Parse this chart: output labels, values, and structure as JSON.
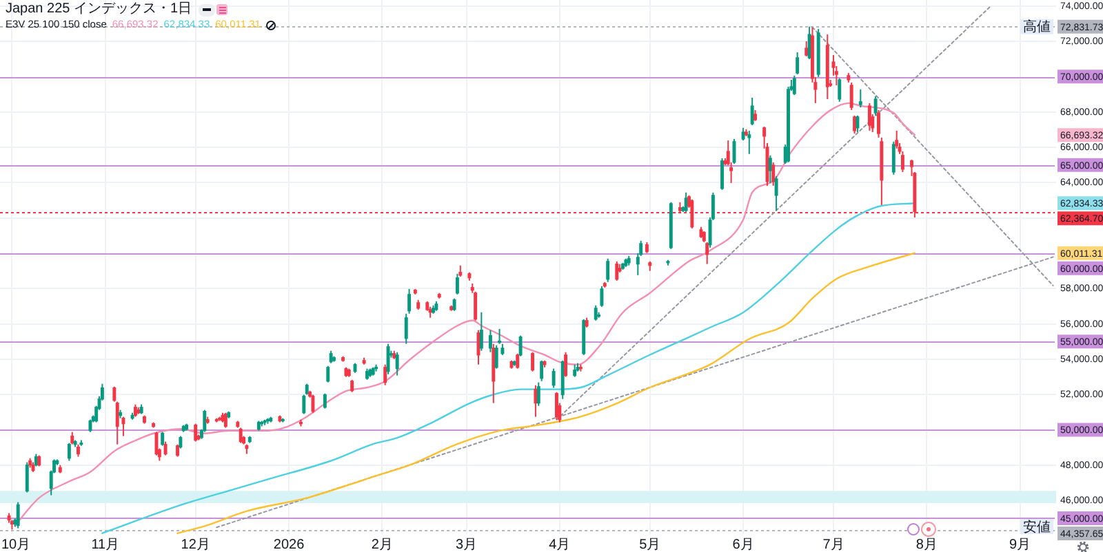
{
  "chart_data": {
    "type": "candlestick",
    "title": "Japan 225 インデックス・1日",
    "legend_title": "E3V 25 100 150 close",
    "grid": true,
    "x": [
      "2025-09-30",
      "2025-10-01",
      "2025-10-02",
      "2025-10-03",
      "2025-10-06",
      "2025-10-07",
      "2025-10-08",
      "2025-10-09",
      "2025-10-10",
      "2025-10-14",
      "2025-10-15",
      "2025-10-16",
      "2025-10-17",
      "2025-10-20",
      "2025-10-21",
      "2025-10-22",
      "2025-10-23",
      "2025-10-24",
      "2025-10-27",
      "2025-10-28",
      "2025-10-29",
      "2025-10-30",
      "2025-10-31",
      "2025-11-04",
      "2025-11-05",
      "2025-11-06",
      "2025-11-07",
      "2025-11-10",
      "2025-11-11",
      "2025-11-12",
      "2025-11-13",
      "2025-11-14",
      "2025-11-17",
      "2025-11-18",
      "2025-11-19",
      "2025-11-20",
      "2025-11-21",
      "2025-11-25",
      "2025-11-26",
      "2025-11-27",
      "2025-11-28",
      "2025-12-01",
      "2025-12-02",
      "2025-12-03",
      "2025-12-04",
      "2025-12-05",
      "2025-12-08",
      "2025-12-09",
      "2025-12-10",
      "2025-12-11",
      "2025-12-12",
      "2025-12-15",
      "2025-12-16",
      "2025-12-17",
      "2025-12-18",
      "2025-12-19",
      "2025-12-22",
      "2025-12-23",
      "2025-12-24",
      "2025-12-25",
      "2025-12-26",
      "2025-12-29",
      "2025-12-30",
      "2026-01-05",
      "2026-01-06",
      "2026-01-07",
      "2026-01-08",
      "2026-01-09",
      "2026-01-13",
      "2026-01-14",
      "2026-01-15",
      "2026-01-16",
      "2026-01-19",
      "2026-01-20",
      "2026-01-21",
      "2026-01-22",
      "2026-01-23",
      "2026-01-26",
      "2026-01-27",
      "2026-01-28",
      "2026-01-29",
      "2026-01-30",
      "2026-02-02",
      "2026-02-03",
      "2026-02-04",
      "2026-02-05",
      "2026-02-06",
      "2026-02-09",
      "2026-02-10",
      "2026-02-12",
      "2026-02-13",
      "2026-02-16",
      "2026-02-17",
      "2026-02-18",
      "2026-02-19",
      "2026-02-20",
      "2026-02-24",
      "2026-02-25",
      "2026-02-26",
      "2026-02-27",
      "2026-03-02",
      "2026-03-03",
      "2026-03-04",
      "2026-03-05",
      "2026-03-06",
      "2026-03-09",
      "2026-03-10",
      "2026-03-11",
      "2026-03-12",
      "2026-03-13",
      "2026-03-16",
      "2026-03-17",
      "2026-03-18",
      "2026-03-19",
      "2026-03-23",
      "2026-03-24",
      "2026-03-25",
      "2026-03-26",
      "2026-03-27",
      "2026-03-30",
      "2026-03-31",
      "2026-04-01",
      "2026-04-02",
      "2026-04-03",
      "2026-04-06",
      "2026-04-07",
      "2026-04-08",
      "2026-04-09",
      "2026-04-10",
      "2026-04-13",
      "2026-04-14",
      "2026-04-15",
      "2026-04-16",
      "2026-04-17",
      "2026-04-20",
      "2026-04-21",
      "2026-04-22",
      "2026-04-23",
      "2026-04-24",
      "2026-04-27",
      "2026-04-28",
      "2026-04-30",
      "2026-05-01",
      "2026-05-07",
      "2026-05-08",
      "2026-05-11",
      "2026-05-12",
      "2026-05-13",
      "2026-05-14",
      "2026-05-15",
      "2026-05-18",
      "2026-05-19",
      "2026-05-20",
      "2026-05-21",
      "2026-05-22",
      "2026-05-25",
      "2026-05-26",
      "2026-05-27",
      "2026-05-28",
      "2026-05-29",
      "2026-06-01",
      "2026-06-02",
      "2026-06-03",
      "2026-06-04",
      "2026-06-05",
      "2026-06-08",
      "2026-06-09",
      "2026-06-10",
      "2026-06-11",
      "2026-06-12",
      "2026-06-15",
      "2026-06-16",
      "2026-06-17",
      "2026-06-18",
      "2026-06-19",
      "2026-06-22",
      "2026-06-23",
      "2026-06-24",
      "2026-06-25",
      "2026-06-26",
      "2026-06-29",
      "2026-06-30",
      "2026-07-01",
      "2026-07-02",
      "2026-07-03",
      "2026-07-06",
      "2026-07-07",
      "2026-07-08",
      "2026-07-09",
      "2026-07-10",
      "2026-07-13",
      "2026-07-14",
      "2026-07-15",
      "2026-07-16",
      "2026-07-17",
      "2026-07-21",
      "2026-07-22",
      "2026-07-23",
      "2026-07-24",
      "2026-07-27",
      "2026-07-28"
    ],
    "ohlc": [
      [
        45130,
        45290,
        44740,
        44900
      ],
      [
        44820,
        44900,
        44357.65,
        44670
      ],
      [
        44670,
        44980,
        44510,
        44900
      ],
      [
        44590,
        45910,
        44430,
        45760
      ],
      [
        46540,
        48170,
        46460,
        48010
      ],
      [
        48250,
        48400,
        47860,
        48010
      ],
      [
        48010,
        48170,
        47620,
        47700
      ],
      [
        48010,
        48640,
        47940,
        48480
      ],
      [
        48480,
        48560,
        47940,
        48010
      ],
      [
        46690,
        47700,
        46300,
        47620
      ],
      [
        47620,
        48330,
        47550,
        48250
      ],
      [
        48090,
        48330,
        48010,
        48250
      ],
      [
        47860,
        48010,
        47550,
        47620
      ],
      [
        48400,
        49260,
        48250,
        49180
      ],
      [
        49650,
        49880,
        49180,
        49260
      ],
      [
        49180,
        49420,
        49030,
        49340
      ],
      [
        49030,
        49180,
        48480,
        48640
      ],
      [
        49180,
        49420,
        49100,
        49260
      ],
      [
        49960,
        50580,
        49880,
        50510
      ],
      [
        50510,
        50820,
        50430,
        50740
      ],
      [
        50510,
        51360,
        50430,
        51280
      ],
      [
        51210,
        51910,
        51130,
        51750
      ],
      [
        51750,
        52610,
        51670,
        52380
      ],
      [
        52380,
        52450,
        51600,
        51670
      ],
      [
        51520,
        51600,
        49180,
        50200
      ],
      [
        50820,
        51130,
        50660,
        50970
      ],
      [
        50660,
        50740,
        49650,
        50350
      ],
      [
        50660,
        50970,
        50580,
        50820
      ],
      [
        51280,
        51440,
        50740,
        50820
      ],
      [
        51130,
        51280,
        50900,
        50970
      ],
      [
        50970,
        51440,
        50900,
        51280
      ],
      [
        50740,
        50820,
        50350,
        50430
      ],
      [
        50350,
        50430,
        50120,
        50200
      ],
      [
        49810,
        49880,
        48560,
        48640
      ],
      [
        48870,
        48950,
        48250,
        48480
      ],
      [
        49180,
        49880,
        49100,
        49810
      ],
      [
        49180,
        49340,
        48560,
        48640
      ],
      [
        49100,
        49180,
        48480,
        48560
      ],
      [
        49030,
        49650,
        48950,
        49570
      ],
      [
        49960,
        50270,
        49880,
        50200
      ],
      [
        50040,
        50350,
        49960,
        50270
      ],
      [
        50270,
        50350,
        49340,
        49420
      ],
      [
        49650,
        49730,
        49420,
        49490
      ],
      [
        49570,
        50040,
        49490,
        49960
      ],
      [
        49960,
        51130,
        49880,
        51050
      ],
      [
        50580,
        50740,
        50350,
        50430
      ],
      [
        50580,
        50660,
        50430,
        50510
      ],
      [
        50660,
        50740,
        50510,
        50580
      ],
      [
        50820,
        50970,
        50430,
        50510
      ],
      [
        50900,
        50970,
        50120,
        50200
      ],
      [
        50740,
        51050,
        50660,
        50970
      ],
      [
        50430,
        50510,
        50120,
        50200
      ],
      [
        50040,
        50120,
        49260,
        49340
      ],
      [
        49570,
        49650,
        49180,
        49260
      ],
      [
        49100,
        49180,
        48640,
        48950
      ],
      [
        49340,
        49650,
        49260,
        49570
      ],
      [
        50040,
        50510,
        49960,
        50430
      ],
      [
        50350,
        50510,
        50200,
        50430
      ],
      [
        50430,
        50580,
        50270,
        50510
      ],
      [
        50510,
        50660,
        50350,
        50580
      ],
      [
        50510,
        50740,
        50430,
        50660
      ],
      [
        50740,
        50820,
        50430,
        50510
      ],
      [
        50510,
        50660,
        50430,
        50580
      ],
      [
        50430,
        50580,
        50200,
        50350
      ],
      [
        50970,
        51990,
        50900,
        51910
      ],
      [
        52060,
        52610,
        51990,
        52530
      ],
      [
        52140,
        52220,
        51830,
        51910
      ],
      [
        51910,
        51990,
        50970,
        51050
      ],
      [
        51280,
        52060,
        51210,
        51990
      ],
      [
        52760,
        53620,
        52690,
        53540
      ],
      [
        53860,
        54480,
        53780,
        54320
      ],
      [
        53930,
        54170,
        53860,
        54090
      ],
      [
        54090,
        54170,
        53860,
        53930
      ],
      [
        53470,
        53540,
        53000,
        53080
      ],
      [
        53390,
        53470,
        53000,
        53080
      ],
      [
        52760,
        52840,
        52140,
        52220
      ],
      [
        53310,
        53780,
        53230,
        53700
      ],
      [
        53930,
        54090,
        53700,
        53780
      ],
      [
        52920,
        53470,
        52840,
        53310
      ],
      [
        53080,
        53470,
        53000,
        53390
      ],
      [
        53150,
        53540,
        53080,
        53470
      ],
      [
        53470,
        53700,
        53310,
        53540
      ],
      [
        53540,
        53700,
        52530,
        52690
      ],
      [
        53310,
        54870,
        53150,
        54710
      ],
      [
        54240,
        54480,
        54090,
        54320
      ],
      [
        54320,
        54480,
        54010,
        54090
      ],
      [
        53470,
        54400,
        53080,
        54240
      ],
      [
        55180,
        56580,
        54870,
        56350
      ],
      [
        56740,
        57980,
        56580,
        57670
      ],
      [
        57910,
        57980,
        57670,
        57750
      ],
      [
        57200,
        57360,
        56810,
        56890
      ],
      [
        57200,
        57280,
        56740,
        56810
      ],
      [
        56810,
        56970,
        56350,
        56660
      ],
      [
        56660,
        57050,
        56580,
        56890
      ],
      [
        56810,
        57280,
        56740,
        57130
      ],
      [
        57670,
        57750,
        57440,
        57520
      ],
      [
        56970,
        57050,
        56740,
        56810
      ],
      [
        56810,
        57440,
        56740,
        57360
      ],
      [
        57750,
        58840,
        57670,
        58610
      ],
      [
        58920,
        59310,
        58680,
        58760
      ],
      [
        58840,
        58920,
        58450,
        58610
      ],
      [
        58060,
        58290,
        57750,
        57910
      ],
      [
        57750,
        57830,
        56190,
        56270
      ],
      [
        55490,
        55650,
        53700,
        54240
      ],
      [
        54630,
        56660,
        54480,
        55650
      ],
      [
        54630,
        55650,
        54400,
        55340
      ],
      [
        54630,
        54870,
        51520,
        52760
      ],
      [
        53540,
        54790,
        53470,
        54630
      ],
      [
        54950,
        55720,
        54870,
        55020
      ],
      [
        54320,
        54870,
        54240,
        54630
      ],
      [
        53860,
        53930,
        53470,
        53540
      ],
      [
        53700,
        53930,
        53620,
        53860
      ],
      [
        54240,
        54320,
        53470,
        53540
      ],
      [
        54240,
        55340,
        54170,
        55260
      ],
      [
        54320,
        54400,
        53310,
        53390
      ],
      [
        52300,
        52530,
        50740,
        51520
      ],
      [
        51520,
        52690,
        51360,
        52450
      ],
      [
        52920,
        53930,
        52760,
        53860
      ],
      [
        53860,
        53930,
        53540,
        53700
      ],
      [
        52530,
        53470,
        52380,
        53310
      ],
      [
        52060,
        52140,
        50580,
        50740
      ],
      [
        51360,
        51520,
        50430,
        50580
      ],
      [
        51990,
        53930,
        51750,
        53860
      ],
      [
        54240,
        54400,
        53000,
        53080
      ],
      [
        53080,
        53700,
        53000,
        53390
      ],
      [
        53390,
        53780,
        53310,
        53540
      ],
      [
        53540,
        53700,
        53310,
        53470
      ],
      [
        54320,
        56270,
        54240,
        56190
      ],
      [
        56190,
        56350,
        55800,
        55880
      ],
      [
        56270,
        57050,
        56190,
        56890
      ],
      [
        56430,
        56660,
        56350,
        56500
      ],
      [
        57050,
        58140,
        56970,
        57980
      ],
      [
        58290,
        58370,
        58060,
        58140
      ],
      [
        58530,
        59700,
        58370,
        59540
      ],
      [
        59390,
        59540,
        58450,
        58530
      ],
      [
        59150,
        59390,
        58920,
        59000
      ],
      [
        59150,
        59460,
        59070,
        59390
      ],
      [
        59310,
        59700,
        59230,
        59620
      ],
      [
        59460,
        59850,
        59310,
        59700
      ],
      [
        59390,
        60010,
        58760,
        59770
      ],
      [
        59930,
        60710,
        59850,
        60550
      ],
      [
        60480,
        60630,
        60010,
        60090
      ],
      [
        59460,
        59540,
        59000,
        59310
      ],
      [
        59460,
        59620,
        59310,
        59540
      ],
      [
        60320,
        62890,
        60240,
        62810
      ],
      [
        62580,
        62890,
        62340,
        62420
      ],
      [
        62420,
        62660,
        62340,
        62580
      ],
      [
        62420,
        63440,
        62340,
        63120
      ],
      [
        63200,
        63280,
        62580,
        62660
      ],
      [
        62970,
        63050,
        61410,
        61490
      ],
      [
        61330,
        61490,
        60870,
        60940
      ],
      [
        61180,
        61250,
        60630,
        60710
      ],
      [
        60550,
        60630,
        59390,
        59930
      ],
      [
        60480,
        62030,
        60320,
        61880
      ],
      [
        61960,
        63440,
        61880,
        63280
      ],
      [
        63670,
        65380,
        63590,
        65230
      ],
      [
        65230,
        65380,
        64990,
        65070
      ],
      [
        65770,
        66390,
        64990,
        65070
      ],
      [
        64840,
        65150,
        63980,
        64680
      ],
      [
        65150,
        66470,
        65070,
        66320
      ],
      [
        66470,
        67100,
        66390,
        66860
      ],
      [
        66860,
        67020,
        66630,
        66710
      ],
      [
        66550,
        66940,
        65620,
        66710
      ],
      [
        67330,
        68810,
        67250,
        68340
      ],
      [
        67870,
        68110,
        67490,
        67560
      ],
      [
        67100,
        67170,
        65930,
        66630
      ],
      [
        66010,
        66240,
        63820,
        64060
      ],
      [
        64680,
        65540,
        63980,
        65380
      ],
      [
        64990,
        65150,
        63820,
        64060
      ],
      [
        63280,
        64370,
        62420,
        64210
      ],
      [
        65150,
        66160,
        65070,
        66010
      ],
      [
        65230,
        69430,
        65150,
        69280
      ],
      [
        69280,
        69820,
        69200,
        69430
      ],
      [
        69040,
        70060,
        68960,
        69900
      ],
      [
        70210,
        71380,
        70130,
        71070
      ],
      [
        71610,
        72000,
        71150,
        71220
      ],
      [
        71070,
        72831.73,
        70990,
        72390
      ],
      [
        72310,
        72780,
        69670,
        69900
      ],
      [
        69670,
        69980,
        68500,
        69280
      ],
      [
        70130,
        72700,
        69980,
        72470
      ],
      [
        71770,
        72390,
        68730,
        69430
      ],
      [
        69590,
        69820,
        69430,
        69510
      ],
      [
        70830,
        71220,
        70060,
        70520
      ],
      [
        70290,
        70600,
        69510,
        70130
      ],
      [
        68730,
        69900,
        68580,
        69820
      ],
      [
        70060,
        70210,
        69670,
        69820
      ],
      [
        69510,
        69670,
        68110,
        68260
      ],
      [
        67720,
        67800,
        66780,
        66940
      ],
      [
        67100,
        67800,
        66860,
        67720
      ],
      [
        68420,
        69280,
        68260,
        68580
      ],
      [
        68340,
        68500,
        66940,
        67250
      ],
      [
        67720,
        67870,
        66860,
        67100
      ],
      [
        67950,
        68890,
        67800,
        68730
      ],
      [
        67950,
        68110,
        66550,
        66780
      ],
      [
        66320,
        66550,
        62730,
        64140
      ],
      [
        64600,
        66320,
        64450,
        66160
      ],
      [
        66390,
        66940,
        65930,
        66080
      ],
      [
        66010,
        66240,
        65620,
        65770
      ],
      [
        65540,
        65770,
        64600,
        64760
      ],
      [
        65230,
        65300,
        64370,
        64910
      ],
      [
        64530,
        64600,
        62030,
        62364.7
      ]
    ],
    "colors": [
      "#f23645",
      "#f23645",
      "#089981",
      "#089981",
      "#089981",
      "#f23645",
      "#f23645",
      "#089981",
      "#f23645",
      "#089981",
      "#089981",
      "#089981",
      "#f23645",
      "#089981",
      "#f23645",
      "#089981",
      "#f23645",
      "#089981",
      "#089981",
      "#089981",
      "#089981",
      "#089981",
      "#089981",
      "#f23645",
      "#f23645",
      "#089981",
      "#f23645",
      "#089981",
      "#f23645",
      "#f23645",
      "#089981",
      "#f23645",
      "#f23645",
      "#f23645",
      "#f23645",
      "#089981",
      "#f23645",
      "#f23645",
      "#089981",
      "#089981",
      "#089981",
      "#f23645",
      "#f23645",
      "#089981",
      "#089981",
      "#f23645",
      "#f23645",
      "#f23645",
      "#f23645",
      "#f23645",
      "#089981",
      "#f23645",
      "#f23645",
      "#f23645",
      "#f23645",
      "#089981",
      "#089981",
      "#089981",
      "#089981",
      "#089981",
      "#089981",
      "#f23645",
      "#089981",
      "#f23645",
      "#089981",
      "#089981",
      "#f23645",
      "#f23645",
      "#089981",
      "#089981",
      "#089981",
      "#089981",
      "#f23645",
      "#f23645",
      "#f23645",
      "#f23645",
      "#089981",
      "#f23645",
      "#089981",
      "#089981",
      "#089981",
      "#089981",
      "#f23645",
      "#089981",
      "#089981",
      "#f23645",
      "#089981",
      "#089981",
      "#089981",
      "#f23645",
      "#f23645",
      "#f23645",
      "#f23645",
      "#089981",
      "#089981",
      "#f23645",
      "#f23645",
      "#089981",
      "#089981",
      "#f23645",
      "#f23645",
      "#f23645",
      "#f23645",
      "#f23645",
      "#089981",
      "#089981",
      "#f23645",
      "#089981",
      "#089981",
      "#089981",
      "#f23645",
      "#089981",
      "#f23645",
      "#089981",
      "#f23645",
      "#f23645",
      "#089981",
      "#089981",
      "#f23645",
      "#089981",
      "#f23645",
      "#f23645",
      "#089981",
      "#f23645",
      "#089981",
      "#089981",
      "#f23645",
      "#089981",
      "#f23645",
      "#089981",
      "#089981",
      "#089981",
      "#f23645",
      "#089981",
      "#f23645",
      "#f23645",
      "#089981",
      "#089981",
      "#089981",
      "#089981",
      "#089981",
      "#f23645",
      "#f23645",
      "#089981",
      "#089981",
      "#f23645",
      "#089981",
      "#089981",
      "#f23645",
      "#f23645",
      "#f23645",
      "#f23645",
      "#f23645",
      "#089981",
      "#089981",
      "#089981",
      "#f23645",
      "#f23645",
      "#f23645",
      "#089981",
      "#089981",
      "#f23645",
      "#089981",
      "#089981",
      "#f23645",
      "#f23645",
      "#f23645",
      "#089981",
      "#f23645",
      "#089981",
      "#089981",
      "#089981",
      "#089981",
      "#089981",
      "#089981",
      "#f23645",
      "#089981",
      "#f23645",
      "#f23645",
      "#089981",
      "#f23645",
      "#f23645",
      "#f23645",
      "#f23645",
      "#089981",
      "#f23645",
      "#f23645",
      "#f23645",
      "#089981",
      "#089981",
      "#f23645",
      "#f23645",
      "#089981",
      "#f23645",
      "#f23645",
      "#089981",
      "#f23645",
      "#f23645",
      "#f23645",
      "#f23645",
      "#f23645"
    ],
    "series": [
      {
        "type": "line",
        "color": "#f48fb1",
        "x": [
          "2025-10-02",
          "2025-10-10",
          "2025-10-20",
          "2025-10-27",
          "2025-11-04",
          "2025-11-11",
          "2025-11-17",
          "2025-11-26",
          "2025-12-04",
          "2025-12-12",
          "2025-12-23",
          "2025-12-30",
          "2026-01-06",
          "2026-01-14",
          "2026-01-20",
          "2026-01-27",
          "2026-02-02",
          "2026-02-10",
          "2026-02-18",
          "2026-02-26",
          "2026-03-03",
          "2026-03-06",
          "2026-03-12",
          "2026-03-19",
          "2026-03-27",
          "2026-04-01",
          "2026-04-07",
          "2026-04-14",
          "2026-04-22",
          "2026-05-01",
          "2026-05-14",
          "2026-05-21",
          "2026-06-01",
          "2026-06-04",
          "2026-06-11",
          "2026-06-17",
          "2026-06-24",
          "2026-06-30",
          "2026-07-06",
          "2026-07-10",
          "2026-07-21",
          "2026-07-24",
          "2026-07-28"
        ],
        "values": [
          44600,
          46150,
          47080,
          47620,
          48800,
          49400,
          49800,
          50050,
          49800,
          49950,
          49950,
          50100,
          50650,
          51600,
          52200,
          52400,
          52750,
          53950,
          55000,
          55900,
          56200,
          55900,
          55400,
          54750,
          54250,
          53850,
          53700,
          54700,
          56650,
          57750,
          59550,
          60150,
          61900,
          63450,
          64100,
          65750,
          67200,
          68100,
          68500,
          68350,
          67950,
          67350,
          66693.32
        ]
      },
      {
        "type": "line",
        "color": "#4dd0e1",
        "x": [
          "2025-10-31",
          "2025-11-12",
          "2025-11-27",
          "2025-12-12",
          "2025-12-26",
          "2026-01-15",
          "2026-01-29",
          "2026-02-06",
          "2026-02-18",
          "2026-03-02",
          "2026-03-10",
          "2026-03-19",
          "2026-03-31",
          "2026-04-08",
          "2026-04-17",
          "2026-05-01",
          "2026-05-14",
          "2026-05-21",
          "2026-06-01",
          "2026-06-12",
          "2026-06-24",
          "2026-07-02",
          "2026-07-08",
          "2026-07-16",
          "2026-07-28"
        ],
        "values": [
          44150,
          44900,
          45800,
          46550,
          47250,
          48250,
          49200,
          49550,
          50450,
          51500,
          52000,
          52300,
          52300,
          52400,
          53100,
          54250,
          55250,
          55800,
          56650,
          58200,
          60150,
          61350,
          62050,
          62650,
          62834.33
        ]
      },
      {
        "type": "line",
        "color": "#fbc02d",
        "x": [
          "2025-11-25",
          "2025-12-04",
          "2025-12-18",
          "2026-01-07",
          "2026-01-22",
          "2026-01-29",
          "2026-02-10",
          "2026-02-26",
          "2026-03-12",
          "2026-03-24",
          "2026-03-31",
          "2026-04-08",
          "2026-04-20",
          "2026-05-01",
          "2026-05-14",
          "2026-05-21",
          "2026-06-03",
          "2026-06-16",
          "2026-06-24",
          "2026-07-02",
          "2026-07-13",
          "2026-07-28"
        ],
        "values": [
          44150,
          44550,
          45400,
          46150,
          46950,
          47350,
          48000,
          49200,
          49950,
          50250,
          50450,
          50750,
          51500,
          52400,
          53200,
          53700,
          55150,
          56050,
          57450,
          58550,
          59250,
          60011.31
        ]
      },
      {
        "type": "line",
        "color": "#9598a1",
        "line_style": "dotted",
        "x": [
          "2026-03-31",
          "2026-08-22"
        ],
        "values": [
          50580,
          73950
        ]
      },
      {
        "type": "line",
        "color": "#9598a1",
        "line_style": "dotted",
        "x": [
          "2025-12-08",
          "2026-09-12"
        ],
        "values": [
          44480,
          59790
        ]
      },
      {
        "type": "line",
        "color": "#9598a1",
        "line_style": "dotted",
        "x": [
          "2026-06-24",
          "2026-09-12"
        ],
        "values": [
          72800,
          58170
        ]
      }
    ],
    "xlim": [
      "2025-09-27",
      "2026-09-13"
    ],
    "xticks": [
      {
        "value": "2025-10-01",
        "label": "10月"
      },
      {
        "value": "2025-11-01",
        "label": "11月"
      },
      {
        "value": "2025-12-01",
        "label": "12月"
      },
      {
        "value": "2026-01-01",
        "label": "2026"
      },
      {
        "value": "2026-02-01",
        "label": "2月"
      },
      {
        "value": "2026-03-01",
        "label": "3月"
      },
      {
        "value": "2026-04-01",
        "label": "4月"
      },
      {
        "value": "2026-05-01",
        "label": "5月"
      },
      {
        "value": "2026-06-01",
        "label": "6月"
      },
      {
        "value": "2026-07-01",
        "label": "7月"
      },
      {
        "value": "2026-08-01",
        "label": "8月"
      },
      {
        "value": "2026-09-01",
        "label": "9月"
      }
    ],
    "ylim": [
      44100,
      74340
    ],
    "yticks": [
      {
        "value": 46000,
        "label": "46,000.00"
      },
      {
        "value": 48000,
        "label": "48,000.00"
      },
      {
        "value": 52000,
        "label": "52,000.00"
      },
      {
        "value": 54000,
        "label": "54,000.00"
      },
      {
        "value": 56000,
        "label": "56,000.00"
      },
      {
        "value": 58000,
        "label": "58,000.00"
      },
      {
        "value": 60011.31,
        "label": "60,011.31"
      },
      {
        "value": 62000,
        "label": null
      },
      {
        "value": 62834.33,
        "label": "62,834.33"
      },
      {
        "value": 64000,
        "label": "64,000.00"
      },
      {
        "value": 66000,
        "label": "66,000.00"
      },
      {
        "value": 66693.32,
        "label": "66,693.32"
      },
      {
        "value": 68000,
        "label": "68,000.00"
      },
      {
        "value": 72000,
        "label": "72,000.00"
      },
      {
        "value": 74000,
        "label": "74,000.00"
      }
    ],
    "ref_lines": [
      {
        "axis": "y",
        "value": 72831.73,
        "label": "72,831.73",
        "color": "#b2b5be",
        "line_style": "dotted"
      },
      {
        "axis": "y",
        "value": 70000,
        "label": "70,000.00",
        "color": "#c990dc"
      },
      {
        "axis": "y",
        "value": 65000,
        "label": "65,000.00",
        "color": "#c990dc"
      },
      {
        "axis": "y",
        "value": 62364.7,
        "label": "62,364.70",
        "color": "#f23645",
        "line_style": "dotted"
      },
      {
        "axis": "y",
        "value": 60000,
        "label": "60,000.00",
        "color": "#c990dc"
      },
      {
        "axis": "y",
        "value": 55000,
        "label": "55,000.00",
        "color": "#c990dc"
      },
      {
        "axis": "y",
        "value": 50000,
        "label": "50,000.00",
        "color": "#c990dc"
      },
      {
        "axis": "y",
        "value": 45000,
        "label": "45,000.00",
        "color": "#c990dc"
      },
      {
        "axis": "y",
        "value": 44357.65,
        "label": "44,357.65",
        "color": "#b2b5be",
        "line_style": "dotted"
      }
    ],
    "bands": [
      {
        "axis": "y",
        "from": 45850,
        "to": 46550,
        "color": "#d8f3f6"
      }
    ],
    "annotations": [
      {
        "text": "高値",
        "y": 72831.73
      },
      {
        "text": "安値",
        "y": 44357.65
      }
    ]
  }
}
